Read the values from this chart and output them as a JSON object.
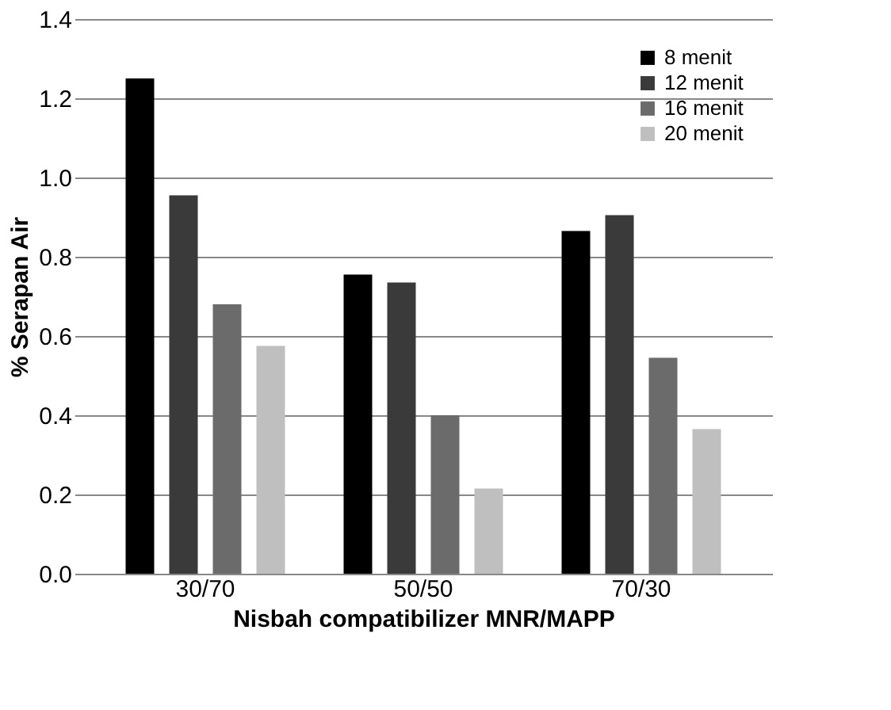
{
  "chart_data": {
    "type": "bar",
    "xlabel": "Nisbah compatibilizer  MNR/MAPP",
    "ylabel": "% Serapan Air",
    "categories": [
      "30/70",
      "50/50",
      "70/30"
    ],
    "series": [
      {
        "name": "8 menit",
        "color": "#000000",
        "values": [
          1.25,
          0.755,
          0.865
        ]
      },
      {
        "name": "12 menit",
        "color": "#3a3a3a",
        "values": [
          0.955,
          0.735,
          0.905
        ]
      },
      {
        "name": "16 menit",
        "color": "#6b6b6b",
        "values": [
          0.68,
          0.4,
          0.545
        ]
      },
      {
        "name": "20 menit",
        "color": "#bfbfbf",
        "values": [
          0.575,
          0.215,
          0.365
        ]
      }
    ],
    "ylim": [
      0,
      1.4
    ],
    "yticks": [
      {
        "value": 0,
        "label": "0.0"
      },
      0.2,
      0.4,
      0.6,
      0.8,
      {
        "value": 1,
        "label": "1.0"
      },
      1.2,
      1.4
    ],
    "grid": "y",
    "legend": "top right"
  }
}
